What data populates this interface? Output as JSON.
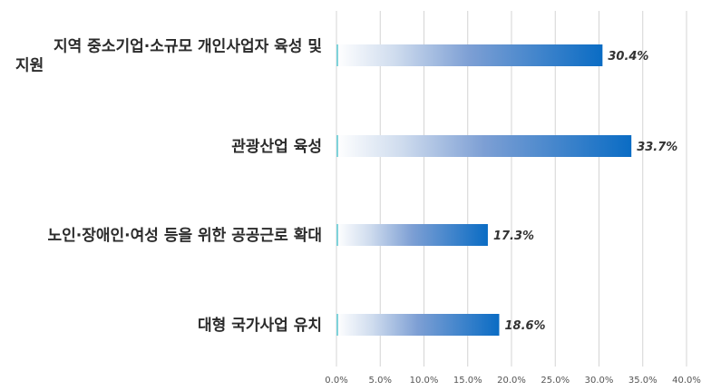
{
  "chart_data": {
    "type": "bar",
    "orientation": "horizontal",
    "categories": [
      [
        "지역 중소기업·소규모 개인사업자 육성 및",
        "지원"
      ],
      [
        "관광산업 육성"
      ],
      [
        "노인·장애인·여성 등을 위한 공공근로 확대"
      ],
      [
        "대형 국가사업 유치"
      ]
    ],
    "values": [
      30.4,
      33.7,
      17.3,
      18.6
    ],
    "data_labels": [
      "30.4%",
      "33.7%",
      "17.3%",
      "18.6%"
    ],
    "xlim": [
      0,
      40
    ],
    "xticks": [
      0,
      5,
      10,
      15,
      20,
      25,
      30,
      35,
      40
    ],
    "xtick_labels": [
      "0.0%",
      "5.0%",
      "10.0%",
      "15.0%",
      "20.0%",
      "25.0%",
      "30.0%",
      "35.0%",
      "40.0%"
    ],
    "grid": true,
    "bar_color": "#0a6cc4",
    "title": "",
    "xlabel": "",
    "ylabel": ""
  }
}
